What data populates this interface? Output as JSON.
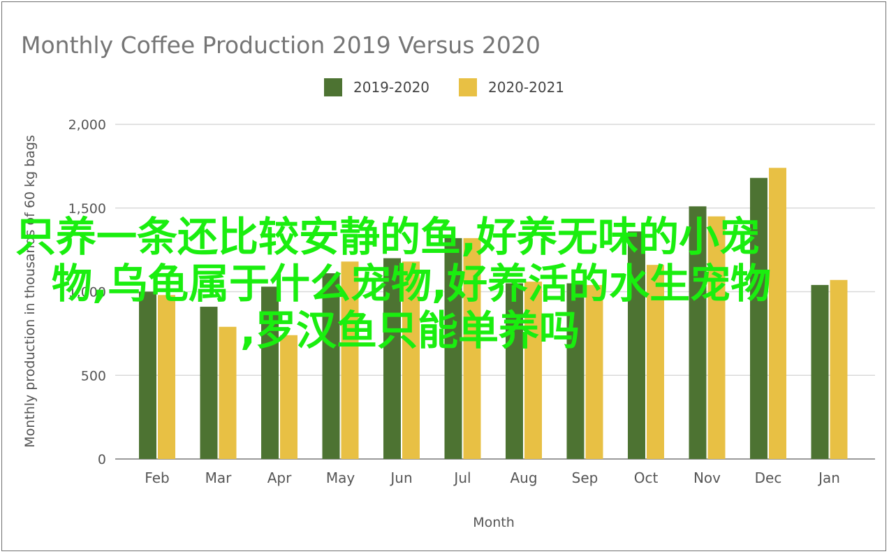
{
  "chart_data": {
    "type": "bar",
    "title": "Monthly Coffee Production 2019 Versus 2020",
    "xlabel": "Month",
    "ylabel": "Monthly production in thousands of 60 kg bags",
    "categories": [
      "Feb",
      "Mar",
      "Apr",
      "May",
      "Jun",
      "Jul",
      "Aug",
      "Sep",
      "Oct",
      "Nov",
      "Dec",
      "Jan"
    ],
    "series": [
      {
        "name": "2019-2020",
        "color": "#4d7332",
        "values": [
          1000,
          910,
          1030,
          1110,
          1200,
          1320,
          1050,
          1050,
          1360,
          1510,
          1680,
          1040
        ]
      },
      {
        "name": "2020-2021",
        "color": "#e8c044",
        "values": [
          980,
          790,
          740,
          1180,
          1180,
          1320,
          1060,
          1040,
          1160,
          1450,
          1740,
          1070
        ]
      }
    ],
    "ylim": [
      0,
      2000
    ],
    "yticks": [
      0,
      500,
      1000,
      1500,
      2000
    ],
    "ytick_labels": [
      "0",
      "500",
      "1,000",
      "1,500",
      "2,000"
    ],
    "grid": true,
    "legend_position": "top"
  },
  "overlay": {
    "color": "#1aee0f",
    "lines": [
      "只养一条还比较安静的鱼,好养无味的小宠",
      "物,乌龟属于什么宠物,好养活的水生宠物",
      ",罗汉鱼只能单养吗"
    ]
  }
}
